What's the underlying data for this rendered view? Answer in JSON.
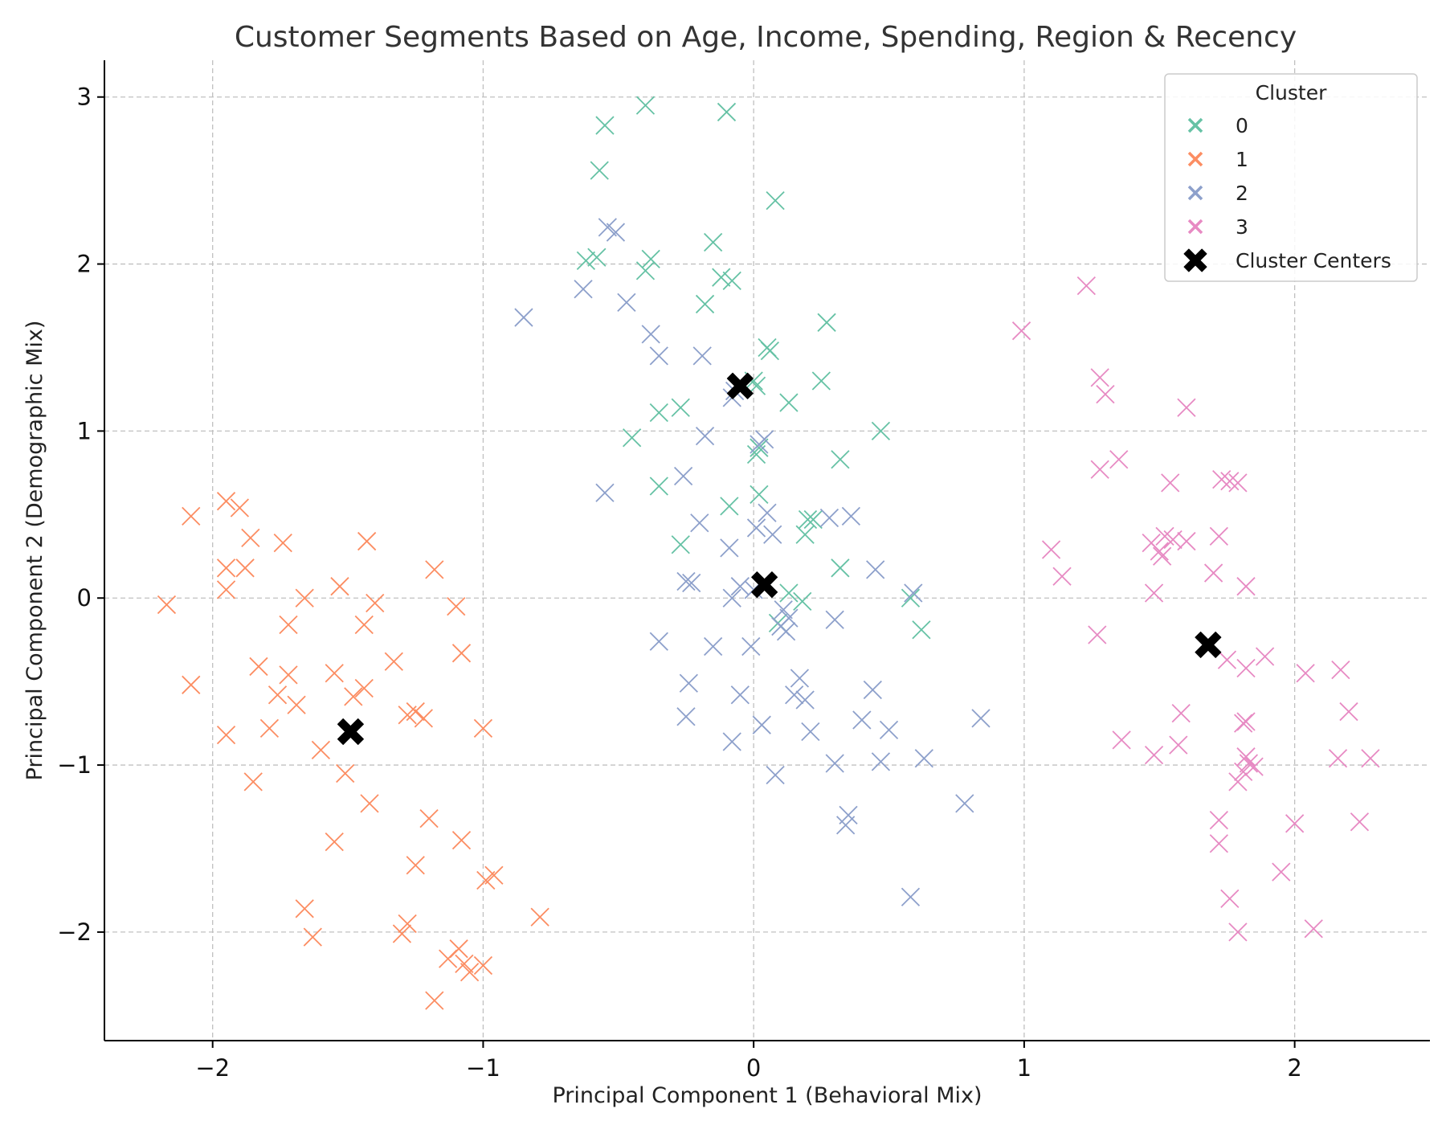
{
  "chart_data": {
    "type": "scatter",
    "title": "Customer Segments Based on Age, Income, Spending, Region & Recency",
    "xlabel": "Principal Component 1 (Behavioral Mix)",
    "ylabel": "Principal Component 2 (Demographic Mix)",
    "xlim": [
      -2.4,
      2.5
    ],
    "ylim": [
      -2.65,
      3.22
    ],
    "xticks": [
      -2,
      -1,
      0,
      1,
      2
    ],
    "yticks": [
      -2,
      -1,
      0,
      1,
      2,
      3
    ],
    "xtick_labels": [
      "−2",
      "−1",
      "0",
      "1",
      "2"
    ],
    "ytick_labels": [
      "−2",
      "−1",
      "0",
      "1",
      "2",
      "3"
    ],
    "grid": true,
    "legend": {
      "title": "Cluster",
      "position": "top-right"
    },
    "series": [
      {
        "name": "0",
        "marker": "x",
        "color": "#66c2a5",
        "points": [
          [
            -0.4,
            2.95
          ],
          [
            -0.1,
            2.91
          ],
          [
            -0.55,
            2.83
          ],
          [
            -0.57,
            2.56
          ],
          [
            0.08,
            2.38
          ],
          [
            -0.62,
            2.02
          ],
          [
            -0.58,
            2.04
          ],
          [
            -0.38,
            2.03
          ],
          [
            -0.4,
            1.96
          ],
          [
            -0.15,
            2.13
          ],
          [
            -0.12,
            1.92
          ],
          [
            -0.08,
            1.9
          ],
          [
            -0.18,
            1.76
          ],
          [
            0.27,
            1.65
          ],
          [
            0.05,
            1.5
          ],
          [
            0.06,
            1.48
          ],
          [
            0.0,
            1.3
          ],
          [
            0.01,
            1.27
          ],
          [
            0.25,
            1.3
          ],
          [
            0.13,
            1.17
          ],
          [
            -0.27,
            1.14
          ],
          [
            -0.35,
            1.11
          ],
          [
            -0.45,
            0.96
          ],
          [
            0.47,
            1.0
          ],
          [
            0.02,
            0.9
          ],
          [
            0.01,
            0.86
          ],
          [
            0.32,
            0.83
          ],
          [
            -0.35,
            0.67
          ],
          [
            0.02,
            0.62
          ],
          [
            -0.09,
            0.55
          ],
          [
            0.2,
            0.47
          ],
          [
            0.22,
            0.47
          ],
          [
            0.19,
            0.38
          ],
          [
            -0.27,
            0.32
          ],
          [
            0.32,
            0.18
          ],
          [
            0.13,
            0.03
          ],
          [
            0.18,
            -0.02
          ],
          [
            0.58,
            0.0
          ],
          [
            0.62,
            -0.19
          ],
          [
            0.09,
            -0.15
          ]
        ]
      },
      {
        "name": "1",
        "marker": "x",
        "color": "#fc8d62",
        "points": [
          [
            -2.08,
            0.49
          ],
          [
            -1.95,
            0.58
          ],
          [
            -1.9,
            0.54
          ],
          [
            -1.86,
            0.36
          ],
          [
            -1.95,
            0.18
          ],
          [
            -1.88,
            0.18
          ],
          [
            -1.95,
            0.05
          ],
          [
            -2.17,
            -0.04
          ],
          [
            -1.74,
            0.33
          ],
          [
            -1.43,
            0.34
          ],
          [
            -1.18,
            0.17
          ],
          [
            -1.53,
            0.07
          ],
          [
            -1.66,
            0.0
          ],
          [
            -1.4,
            -0.03
          ],
          [
            -1.1,
            -0.05
          ],
          [
            -1.72,
            -0.16
          ],
          [
            -1.44,
            -0.16
          ],
          [
            -1.08,
            -0.33
          ],
          [
            -1.83,
            -0.41
          ],
          [
            -1.72,
            -0.46
          ],
          [
            -1.55,
            -0.45
          ],
          [
            -1.33,
            -0.38
          ],
          [
            -2.08,
            -0.52
          ],
          [
            -1.76,
            -0.58
          ],
          [
            -1.44,
            -0.54
          ],
          [
            -1.48,
            -0.59
          ],
          [
            -1.69,
            -0.64
          ],
          [
            -1.28,
            -0.7
          ],
          [
            -1.25,
            -0.68
          ],
          [
            -1.22,
            -0.72
          ],
          [
            -1.95,
            -0.82
          ],
          [
            -1.79,
            -0.78
          ],
          [
            -1.0,
            -0.78
          ],
          [
            -1.6,
            -0.91
          ],
          [
            -1.51,
            -1.05
          ],
          [
            -1.85,
            -1.1
          ],
          [
            -1.42,
            -1.23
          ],
          [
            -1.2,
            -1.32
          ],
          [
            -1.55,
            -1.46
          ],
          [
            -1.08,
            -1.45
          ],
          [
            -1.25,
            -1.6
          ],
          [
            -0.96,
            -1.66
          ],
          [
            -0.99,
            -1.69
          ],
          [
            -1.66,
            -1.86
          ],
          [
            -0.79,
            -1.91
          ],
          [
            -1.28,
            -1.95
          ],
          [
            -1.3,
            -2.01
          ],
          [
            -1.63,
            -2.03
          ],
          [
            -1.09,
            -2.1
          ],
          [
            -1.13,
            -2.16
          ],
          [
            -1.07,
            -2.19
          ],
          [
            -1.05,
            -2.24
          ],
          [
            -1.0,
            -2.2
          ],
          [
            -1.18,
            -2.41
          ]
        ]
      },
      {
        "name": "2",
        "marker": "x",
        "color": "#8da0cb",
        "points": [
          [
            -0.54,
            2.22
          ],
          [
            -0.51,
            2.19
          ],
          [
            -0.63,
            1.85
          ],
          [
            -0.47,
            1.77
          ],
          [
            -0.85,
            1.68
          ],
          [
            -0.38,
            1.58
          ],
          [
            -0.35,
            1.45
          ],
          [
            -0.19,
            1.45
          ],
          [
            -0.07,
            1.24
          ],
          [
            -0.08,
            1.2
          ],
          [
            0.04,
            0.95
          ],
          [
            0.02,
            0.92
          ],
          [
            -0.18,
            0.97
          ],
          [
            -0.26,
            0.73
          ],
          [
            -0.55,
            0.63
          ],
          [
            0.05,
            0.51
          ],
          [
            -0.2,
            0.45
          ],
          [
            0.28,
            0.48
          ],
          [
            0.36,
            0.49
          ],
          [
            0.01,
            0.42
          ],
          [
            0.07,
            0.38
          ],
          [
            -0.09,
            0.3
          ],
          [
            0.45,
            0.17
          ],
          [
            -0.25,
            0.1
          ],
          [
            -0.23,
            0.09
          ],
          [
            -0.05,
            0.07
          ],
          [
            0.0,
            0.05
          ],
          [
            -0.08,
            0.0
          ],
          [
            0.59,
            0.03
          ],
          [
            0.11,
            -0.07
          ],
          [
            0.13,
            -0.12
          ],
          [
            0.3,
            -0.13
          ],
          [
            0.1,
            -0.17
          ],
          [
            0.12,
            -0.2
          ],
          [
            -0.35,
            -0.26
          ],
          [
            -0.15,
            -0.29
          ],
          [
            -0.01,
            -0.29
          ],
          [
            0.17,
            -0.48
          ],
          [
            -0.24,
            -0.51
          ],
          [
            0.44,
            -0.55
          ],
          [
            -0.05,
            -0.58
          ],
          [
            0.15,
            -0.58
          ],
          [
            0.19,
            -0.61
          ],
          [
            -0.25,
            -0.71
          ],
          [
            0.4,
            -0.73
          ],
          [
            0.03,
            -0.76
          ],
          [
            0.5,
            -0.79
          ],
          [
            0.21,
            -0.8
          ],
          [
            0.84,
            -0.72
          ],
          [
            -0.08,
            -0.86
          ],
          [
            0.3,
            -0.99
          ],
          [
            0.47,
            -0.98
          ],
          [
            0.63,
            -0.96
          ],
          [
            0.08,
            -1.06
          ],
          [
            0.78,
            -1.23
          ],
          [
            0.35,
            -1.3
          ],
          [
            0.34,
            -1.36
          ],
          [
            0.58,
            -1.79
          ]
        ]
      },
      {
        "name": "3",
        "marker": "x",
        "color": "#e78ac3",
        "points": [
          [
            1.23,
            1.87
          ],
          [
            0.99,
            1.6
          ],
          [
            1.28,
            1.32
          ],
          [
            1.3,
            1.22
          ],
          [
            1.6,
            1.14
          ],
          [
            1.35,
            0.83
          ],
          [
            1.28,
            0.77
          ],
          [
            1.54,
            0.69
          ],
          [
            1.73,
            0.71
          ],
          [
            1.79,
            0.69
          ],
          [
            1.76,
            0.7
          ],
          [
            1.1,
            0.29
          ],
          [
            1.14,
            0.13
          ],
          [
            1.52,
            0.37
          ],
          [
            1.47,
            0.33
          ],
          [
            1.55,
            0.35
          ],
          [
            1.6,
            0.34
          ],
          [
            1.72,
            0.37
          ],
          [
            1.5,
            0.28
          ],
          [
            1.51,
            0.25
          ],
          [
            1.48,
            0.03
          ],
          [
            1.7,
            0.15
          ],
          [
            1.82,
            0.07
          ],
          [
            1.27,
            -0.22
          ],
          [
            1.75,
            -0.37
          ],
          [
            1.82,
            -0.42
          ],
          [
            1.89,
            -0.35
          ],
          [
            2.04,
            -0.45
          ],
          [
            2.17,
            -0.43
          ],
          [
            2.2,
            -0.68
          ],
          [
            1.58,
            -0.69
          ],
          [
            1.82,
            -0.74
          ],
          [
            1.81,
            -0.75
          ],
          [
            1.36,
            -0.85
          ],
          [
            1.57,
            -0.88
          ],
          [
            1.48,
            -0.94
          ],
          [
            1.82,
            -0.95
          ],
          [
            1.83,
            -0.99
          ],
          [
            1.85,
            -1.01
          ],
          [
            1.81,
            -1.04
          ],
          [
            2.16,
            -0.96
          ],
          [
            2.28,
            -0.96
          ],
          [
            1.79,
            -1.1
          ],
          [
            1.72,
            -1.33
          ],
          [
            2.0,
            -1.35
          ],
          [
            2.24,
            -1.34
          ],
          [
            1.72,
            -1.47
          ],
          [
            1.95,
            -1.64
          ],
          [
            1.76,
            -1.8
          ],
          [
            2.07,
            -1.98
          ],
          [
            1.79,
            -2.0
          ]
        ]
      },
      {
        "name": "Cluster Centers",
        "marker": "X",
        "color": "#000000",
        "points": [
          [
            -0.05,
            1.27
          ],
          [
            0.04,
            0.08
          ],
          [
            -1.49,
            -0.8
          ],
          [
            1.68,
            -0.28
          ]
        ]
      }
    ]
  }
}
